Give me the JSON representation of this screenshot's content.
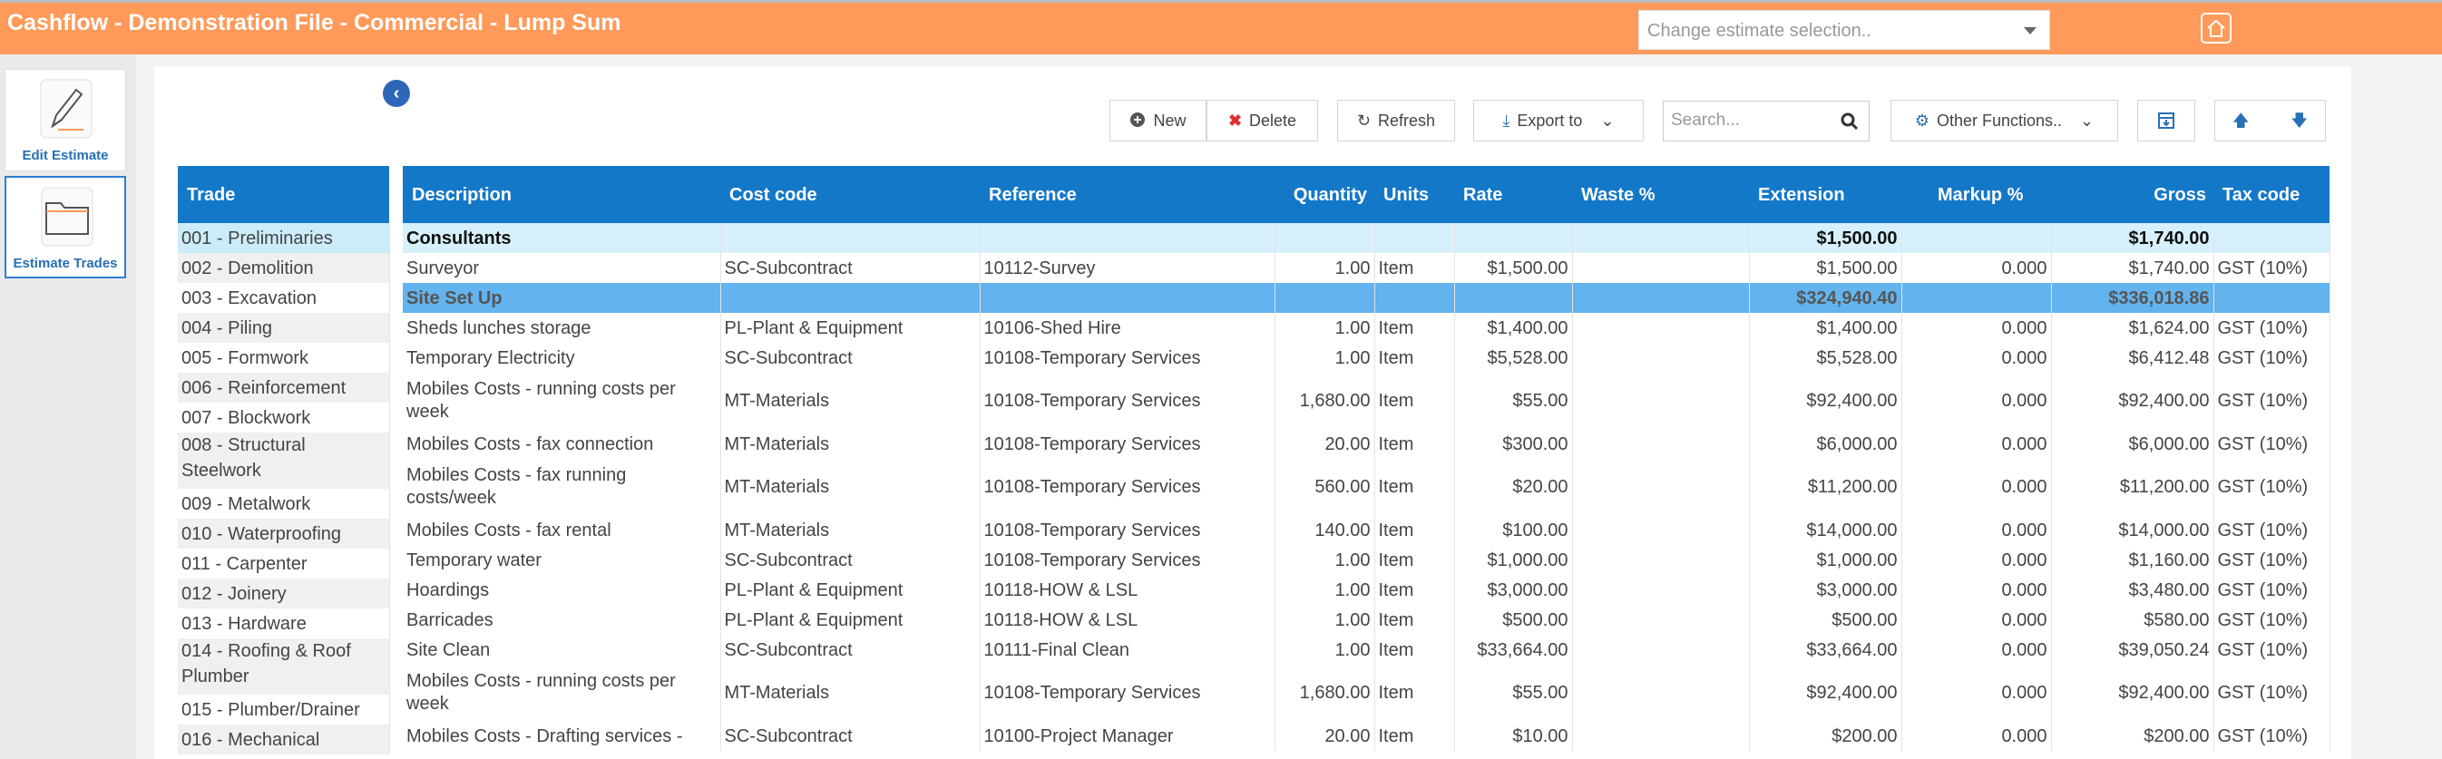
{
  "app": {
    "title": "Cashflow - Demonstration File - Commercial - Lump Sum",
    "estimate_select_placeholder": "Change estimate selection.."
  },
  "sidebar": {
    "items": [
      {
        "label": "Edit Estimate",
        "icon": "pencil-icon"
      },
      {
        "label": "Estimate Trades",
        "icon": "folder-icon"
      }
    ]
  },
  "toolbar": {
    "new_label": "New",
    "delete_label": "Delete",
    "refresh_label": "Refresh",
    "export_label": "Export to",
    "search_placeholder": "Search...",
    "other_functions_label": "Other Functions.."
  },
  "trades": {
    "header": "Trade",
    "rows": [
      "001 - Preliminaries",
      "002 - Demolition",
      "003 - Excavation",
      "004 - Piling",
      "005 - Formwork",
      "006 - Reinforcement",
      "007 - Blockwork",
      "008 - Structural Steelwork",
      "009 - Metalwork",
      "010 - Waterproofing",
      "011 - Carpenter",
      "012 - Joinery",
      "013 - Hardware",
      "014 - Roofing & Roof Plumber",
      "015 - Plumber/Drainer",
      "016 - Mechanical"
    ]
  },
  "items": {
    "columns": [
      "Description",
      "Cost code",
      "Reference",
      "Quantity",
      "Units",
      "Rate",
      "Waste %",
      "Extension",
      "Markup %",
      "Gross",
      "Tax code"
    ],
    "rows": [
      {
        "desc": "Consultants",
        "cost": "",
        "ref": "",
        "qty": "",
        "units": "",
        "rate": "",
        "waste": "",
        "ext": "$1,500.00",
        "markup": "",
        "gross": "$1,740.00",
        "tax": ""
      },
      {
        "desc": "Surveyor",
        "cost": "SC-Subcontract",
        "ref": "10112-Survey",
        "qty": "1.00",
        "units": "Item",
        "rate": "$1,500.00",
        "waste": "",
        "ext": "$1,500.00",
        "markup": "0.000",
        "gross": "$1,740.00",
        "tax": "GST (10%)"
      },
      {
        "desc": "Site Set Up",
        "cost": "",
        "ref": "",
        "qty": "",
        "units": "",
        "rate": "",
        "waste": "",
        "ext": "$324,940.40",
        "markup": "",
        "gross": "$336,018.86",
        "tax": ""
      },
      {
        "desc": "Sheds lunches storage",
        "cost": "PL-Plant & Equipment",
        "ref": "10106-Shed Hire",
        "qty": "1.00",
        "units": "Item",
        "rate": "$1,400.00",
        "waste": "",
        "ext": "$1,400.00",
        "markup": "0.000",
        "gross": "$1,624.00",
        "tax": "GST (10%)"
      },
      {
        "desc": "Temporary Electricity",
        "cost": "SC-Subcontract",
        "ref": "10108-Temporary Services",
        "qty": "1.00",
        "units": "Item",
        "rate": "$5,528.00",
        "waste": "",
        "ext": "$5,528.00",
        "markup": "0.000",
        "gross": "$6,412.48",
        "tax": "GST (10%)"
      },
      {
        "desc": "Mobiles Costs - running costs per week",
        "cost": "MT-Materials",
        "ref": "10108-Temporary Services",
        "qty": "1,680.00",
        "units": "Item",
        "rate": "$55.00",
        "waste": "",
        "ext": "$92,400.00",
        "markup": "0.000",
        "gross": "$92,400.00",
        "tax": "GST (10%)"
      },
      {
        "desc": "Mobiles Costs - fax connection",
        "cost": "MT-Materials",
        "ref": "10108-Temporary Services",
        "qty": "20.00",
        "units": "Item",
        "rate": "$300.00",
        "waste": "",
        "ext": "$6,000.00",
        "markup": "0.000",
        "gross": "$6,000.00",
        "tax": "GST (10%)"
      },
      {
        "desc": "Mobiles Costs - fax running costs/week",
        "cost": "MT-Materials",
        "ref": "10108-Temporary Services",
        "qty": "560.00",
        "units": "Item",
        "rate": "$20.00",
        "waste": "",
        "ext": "$11,200.00",
        "markup": "0.000",
        "gross": "$11,200.00",
        "tax": "GST (10%)"
      },
      {
        "desc": "Mobiles Costs - fax rental",
        "cost": "MT-Materials",
        "ref": "10108-Temporary Services",
        "qty": "140.00",
        "units": "Item",
        "rate": "$100.00",
        "waste": "",
        "ext": "$14,000.00",
        "markup": "0.000",
        "gross": "$14,000.00",
        "tax": "GST (10%)"
      },
      {
        "desc": "Temporary water",
        "cost": "SC-Subcontract",
        "ref": "10108-Temporary Services",
        "qty": "1.00",
        "units": "Item",
        "rate": "$1,000.00",
        "waste": "",
        "ext": "$1,000.00",
        "markup": "0.000",
        "gross": "$1,160.00",
        "tax": "GST (10%)"
      },
      {
        "desc": "Hoardings",
        "cost": "PL-Plant & Equipment",
        "ref": "10118-HOW & LSL",
        "qty": "1.00",
        "units": "Item",
        "rate": "$3,000.00",
        "waste": "",
        "ext": "$3,000.00",
        "markup": "0.000",
        "gross": "$3,480.00",
        "tax": "GST (10%)"
      },
      {
        "desc": "Barricades",
        "cost": "PL-Plant & Equipment",
        "ref": "10118-HOW & LSL",
        "qty": "1.00",
        "units": "Item",
        "rate": "$500.00",
        "waste": "",
        "ext": "$500.00",
        "markup": "0.000",
        "gross": "$580.00",
        "tax": "GST (10%)"
      },
      {
        "desc": "Site Clean",
        "cost": "SC-Subcontract",
        "ref": "10111-Final Clean",
        "qty": "1.00",
        "units": "Item",
        "rate": "$33,664.00",
        "waste": "",
        "ext": "$33,664.00",
        "markup": "0.000",
        "gross": "$39,050.24",
        "tax": "GST (10%)"
      },
      {
        "desc": "Mobiles Costs - running costs per week",
        "cost": "MT-Materials",
        "ref": "10108-Temporary Services",
        "qty": "1,680.00",
        "units": "Item",
        "rate": "$55.00",
        "waste": "",
        "ext": "$92,400.00",
        "markup": "0.000",
        "gross": "$92,400.00",
        "tax": "GST (10%)"
      },
      {
        "desc": "Mobiles Costs - Drafting services -",
        "cost": "SC-Subcontract",
        "ref": "10100-Project Manager",
        "qty": "20.00",
        "units": "Item",
        "rate": "$10.00",
        "waste": "",
        "ext": "$200.00",
        "markup": "0.000",
        "gross": "$200.00",
        "tax": "GST (10%)"
      }
    ]
  },
  "colors": {
    "topbar": "#ff9a5a",
    "header": "#1478c8",
    "selected_row": "#ccecf9",
    "group_row": "#63b3ee"
  }
}
